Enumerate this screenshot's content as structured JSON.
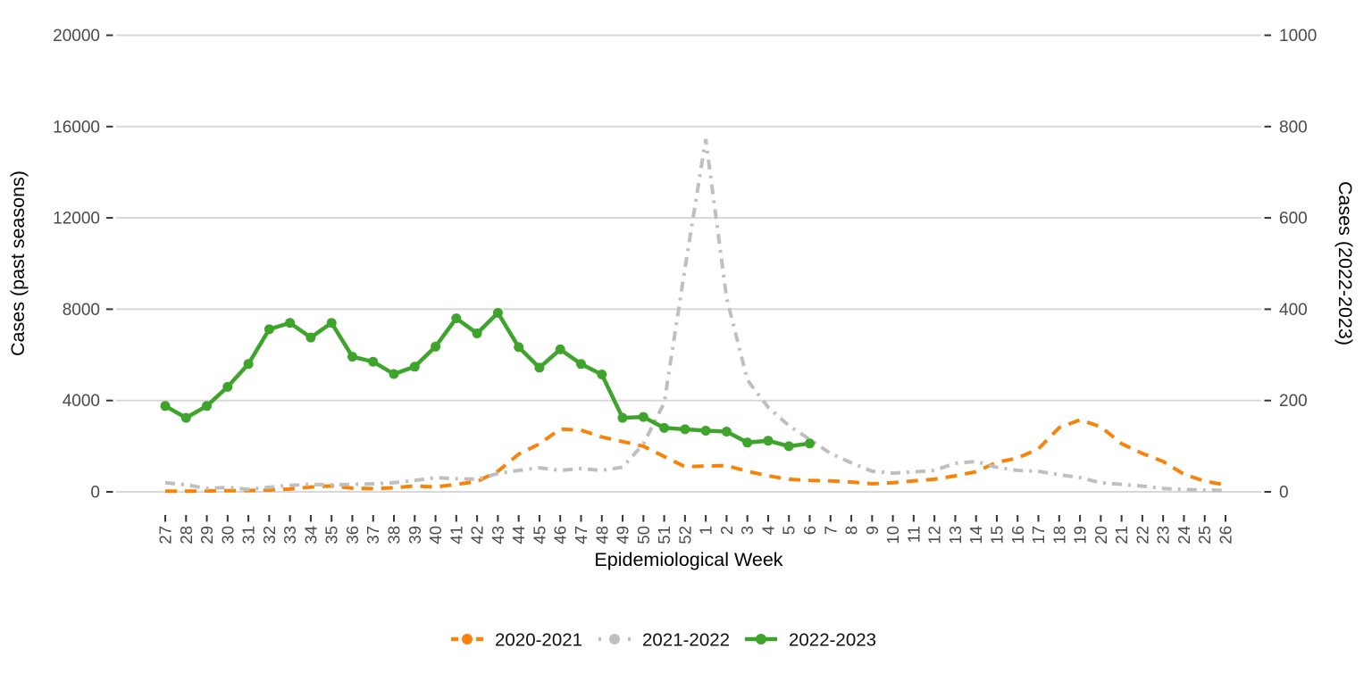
{
  "chart_data": {
    "type": "line",
    "title": "",
    "xlabel": "Epidemiological Week",
    "ylabel_left": "Cases (past seasons)",
    "ylabel_right": "Cases (2022-2023)",
    "grid": "horizontal-only",
    "legend_position": "bottom-center",
    "x_categories": [
      "27",
      "28",
      "29",
      "30",
      "31",
      "32",
      "33",
      "34",
      "35",
      "36",
      "37",
      "38",
      "39",
      "40",
      "41",
      "42",
      "43",
      "44",
      "45",
      "46",
      "47",
      "48",
      "49",
      "50",
      "51",
      "52",
      "1",
      "2",
      "3",
      "4",
      "5",
      "6",
      "7",
      "8",
      "9",
      "10",
      "11",
      "12",
      "13",
      "14",
      "15",
      "16",
      "17",
      "18",
      "19",
      "20",
      "21",
      "22",
      "23",
      "24",
      "25",
      "26"
    ],
    "y_left": {
      "ticks": [
        0,
        4000,
        8000,
        12000,
        16000,
        20000
      ],
      "max": 20000
    },
    "y_right": {
      "ticks": [
        0,
        200,
        400,
        600,
        800,
        1000
      ],
      "max": 1000
    },
    "colors": {
      "grid": "#D8D8D8",
      "tick": "#333333",
      "tick_label": "#4A4A4A",
      "axis_title": "#000000"
    },
    "series": [
      {
        "name": "2020-2021",
        "axis": "left",
        "color": "#F8830B",
        "style": "dashed",
        "marker": false,
        "values": [
          30,
          30,
          40,
          50,
          60,
          80,
          120,
          210,
          260,
          160,
          140,
          180,
          260,
          210,
          330,
          450,
          900,
          1650,
          2100,
          2750,
          2700,
          2400,
          2200,
          2000,
          1550,
          1100,
          1130,
          1150,
          900,
          700,
          550,
          500,
          480,
          430,
          350,
          400,
          480,
          550,
          700,
          880,
          1290,
          1480,
          1880,
          2810,
          3150,
          2850,
          2110,
          1680,
          1330,
          770,
          470,
          300
        ]
      },
      {
        "name": "2021-2022",
        "axis": "left",
        "color": "#BFBFBF",
        "style": "dashdot",
        "marker": false,
        "values": [
          400,
          310,
          150,
          200,
          110,
          200,
          280,
          330,
          300,
          330,
          350,
          400,
          500,
          620,
          580,
          550,
          800,
          940,
          1050,
          940,
          1020,
          940,
          1080,
          2100,
          3900,
          9800,
          15450,
          8500,
          4900,
          3700,
          2900,
          2300,
          1680,
          1270,
          900,
          820,
          870,
          940,
          1250,
          1330,
          1070,
          940,
          900,
          750,
          620,
          400,
          330,
          250,
          150,
          100,
          80,
          60
        ]
      },
      {
        "name": "2022-2023",
        "axis": "right",
        "color": "#3FA42C",
        "style": "solid",
        "marker": true,
        "values": [
          188,
          162,
          188,
          230,
          280,
          356,
          370,
          338,
          370,
          296,
          285,
          258,
          274,
          318,
          380,
          347,
          392,
          317,
          272,
          312,
          280,
          257,
          162,
          164,
          140,
          137,
          134,
          132,
          108,
          112,
          100,
          106,
          null,
          null,
          null,
          null,
          null,
          null,
          null,
          null,
          null,
          null,
          null,
          null,
          null,
          null,
          null,
          null,
          null,
          null,
          null,
          null
        ]
      }
    ]
  }
}
